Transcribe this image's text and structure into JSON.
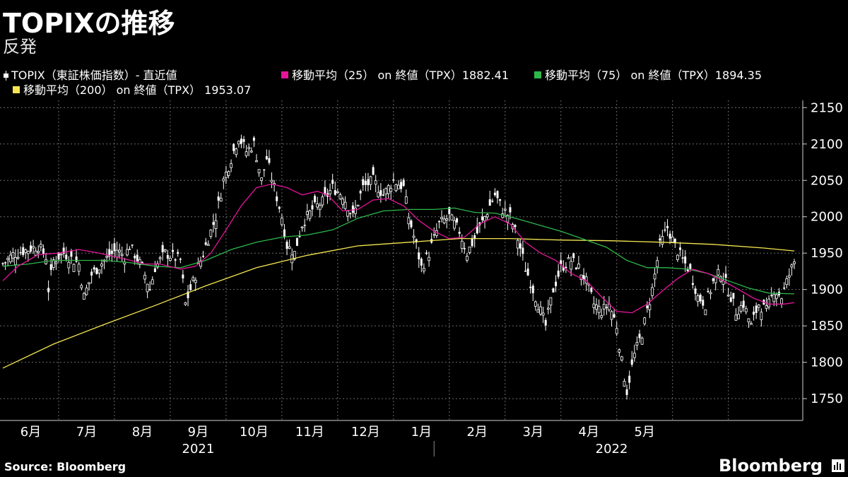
{
  "title": "TOPIXの推移",
  "subtitle": "反発",
  "legend": [
    {
      "label": "TOPIX（東証株価指数）- 直近値",
      "color": "#ffffff",
      "kind": "candle"
    },
    {
      "label": "移動平均（25） on 終値（TPX）1882.41",
      "color": "#e6149b",
      "kind": "line"
    },
    {
      "label": "移動平均（75） on 終値（TPX）1894.35",
      "color": "#2db84a",
      "kind": "line"
    },
    {
      "label": "移動平均（200） on 終値（TPX） 1953.07",
      "color": "#f5e650",
      "kind": "line"
    }
  ],
  "source": "Source:  Bloomberg",
  "brand": "Bloomberg",
  "chart_data": {
    "type": "line",
    "y_ticks": [
      1750,
      1800,
      1850,
      1900,
      1950,
      2000,
      2050,
      2100,
      2150
    ],
    "ylim": [
      1720,
      2160
    ],
    "x_ticks": [
      "6月",
      "7月",
      "8月",
      "9月",
      "10月",
      "11月",
      "12月",
      "1月",
      "2月",
      "3月",
      "4月",
      "5月"
    ],
    "years": [
      "2021",
      "2022"
    ],
    "grid": true,
    "price_close": [
      {
        "x": 0,
        "y": 1935
      },
      {
        "x": 4,
        "y": 1948
      },
      {
        "x": 10,
        "y": 1955
      },
      {
        "x": 14,
        "y": 1960
      },
      {
        "x": 17,
        "y": 1945
      },
      {
        "x": 18,
        "y": 1900
      },
      {
        "x": 20,
        "y": 1940
      },
      {
        "x": 24,
        "y": 1950
      },
      {
        "x": 30,
        "y": 1935
      },
      {
        "x": 32,
        "y": 1890
      },
      {
        "x": 35,
        "y": 1920
      },
      {
        "x": 40,
        "y": 1940
      },
      {
        "x": 45,
        "y": 1955
      },
      {
        "x": 48,
        "y": 1945
      },
      {
        "x": 50,
        "y": 1960
      },
      {
        "x": 55,
        "y": 1930
      },
      {
        "x": 58,
        "y": 1900
      },
      {
        "x": 60,
        "y": 1930
      },
      {
        "x": 64,
        "y": 1950
      },
      {
        "x": 70,
        "y": 1940
      },
      {
        "x": 72,
        "y": 1880
      },
      {
        "x": 76,
        "y": 1920
      },
      {
        "x": 80,
        "y": 1960
      },
      {
        "x": 84,
        "y": 2000
      },
      {
        "x": 87,
        "y": 2050
      },
      {
        "x": 90,
        "y": 2080
      },
      {
        "x": 93,
        "y": 2110
      },
      {
        "x": 96,
        "y": 2090
      },
      {
        "x": 99,
        "y": 2100
      },
      {
        "x": 102,
        "y": 2050
      },
      {
        "x": 104,
        "y": 2080
      },
      {
        "x": 107,
        "y": 2040
      },
      {
        "x": 110,
        "y": 2000
      },
      {
        "x": 112,
        "y": 1960
      },
      {
        "x": 115,
        "y": 1950
      },
      {
        "x": 118,
        "y": 1990
      },
      {
        "x": 122,
        "y": 2010
      },
      {
        "x": 126,
        "y": 2020
      },
      {
        "x": 130,
        "y": 2040
      },
      {
        "x": 134,
        "y": 2030
      },
      {
        "x": 138,
        "y": 2000
      },
      {
        "x": 142,
        "y": 2040
      },
      {
        "x": 146,
        "y": 2050
      },
      {
        "x": 150,
        "y": 2030
      },
      {
        "x": 154,
        "y": 2050
      },
      {
        "x": 158,
        "y": 2040
      },
      {
        "x": 160,
        "y": 2000
      },
      {
        "x": 163,
        "y": 1960
      },
      {
        "x": 165,
        "y": 1930
      },
      {
        "x": 168,
        "y": 1950
      },
      {
        "x": 172,
        "y": 1990
      },
      {
        "x": 176,
        "y": 2000
      },
      {
        "x": 180,
        "y": 1980
      },
      {
        "x": 183,
        "y": 1950
      },
      {
        "x": 186,
        "y": 1970
      },
      {
        "x": 190,
        "y": 2000
      },
      {
        "x": 194,
        "y": 2030
      },
      {
        "x": 197,
        "y": 2010
      },
      {
        "x": 200,
        "y": 2000
      },
      {
        "x": 203,
        "y": 1970
      },
      {
        "x": 206,
        "y": 1930
      },
      {
        "x": 209,
        "y": 1900
      },
      {
        "x": 212,
        "y": 1870
      },
      {
        "x": 214,
        "y": 1850
      },
      {
        "x": 217,
        "y": 1900
      },
      {
        "x": 220,
        "y": 1930
      },
      {
        "x": 224,
        "y": 1940
      },
      {
        "x": 227,
        "y": 1930
      },
      {
        "x": 230,
        "y": 1910
      },
      {
        "x": 233,
        "y": 1880
      },
      {
        "x": 236,
        "y": 1870
      },
      {
        "x": 239,
        "y": 1880
      },
      {
        "x": 242,
        "y": 1850
      },
      {
        "x": 244,
        "y": 1800
      },
      {
        "x": 246,
        "y": 1760
      },
      {
        "x": 249,
        "y": 1810
      },
      {
        "x": 252,
        "y": 1840
      },
      {
        "x": 256,
        "y": 1900
      },
      {
        "x": 259,
        "y": 1960
      },
      {
        "x": 262,
        "y": 1985
      },
      {
        "x": 265,
        "y": 1960
      },
      {
        "x": 268,
        "y": 1940
      },
      {
        "x": 271,
        "y": 1925
      },
      {
        "x": 274,
        "y": 1890
      },
      {
        "x": 277,
        "y": 1880
      },
      {
        "x": 280,
        "y": 1910
      },
      {
        "x": 283,
        "y": 1925
      },
      {
        "x": 286,
        "y": 1900
      },
      {
        "x": 289,
        "y": 1870
      },
      {
        "x": 292,
        "y": 1880
      },
      {
        "x": 295,
        "y": 1850
      },
      {
        "x": 298,
        "y": 1880
      },
      {
        "x": 301,
        "y": 1870
      },
      {
        "x": 304,
        "y": 1900
      },
      {
        "x": 307,
        "y": 1890
      },
      {
        "x": 310,
        "y": 1920
      },
      {
        "x": 312,
        "y": 1938
      }
    ],
    "ma25": [
      {
        "x": 0,
        "y": 1912
      },
      {
        "x": 6,
        "y": 1932
      },
      {
        "x": 14,
        "y": 1948
      },
      {
        "x": 22,
        "y": 1950
      },
      {
        "x": 30,
        "y": 1955
      },
      {
        "x": 38,
        "y": 1950
      },
      {
        "x": 48,
        "y": 1942
      },
      {
        "x": 56,
        "y": 1935
      },
      {
        "x": 62,
        "y": 1935
      },
      {
        "x": 70,
        "y": 1928
      },
      {
        "x": 76,
        "y": 1932
      },
      {
        "x": 82,
        "y": 1950
      },
      {
        "x": 88,
        "y": 1982
      },
      {
        "x": 94,
        "y": 2015
      },
      {
        "x": 100,
        "y": 2040
      },
      {
        "x": 106,
        "y": 2045
      },
      {
        "x": 112,
        "y": 2040
      },
      {
        "x": 118,
        "y": 2030
      },
      {
        "x": 124,
        "y": 2035
      },
      {
        "x": 128,
        "y": 2030
      },
      {
        "x": 134,
        "y": 2008
      },
      {
        "x": 140,
        "y": 2010
      },
      {
        "x": 146,
        "y": 2023
      },
      {
        "x": 152,
        "y": 2025
      },
      {
        "x": 158,
        "y": 2015
      },
      {
        "x": 164,
        "y": 1995
      },
      {
        "x": 170,
        "y": 1980
      },
      {
        "x": 176,
        "y": 1970
      },
      {
        "x": 182,
        "y": 1972
      },
      {
        "x": 188,
        "y": 1990
      },
      {
        "x": 194,
        "y": 2000
      },
      {
        "x": 200,
        "y": 1990
      },
      {
        "x": 206,
        "y": 1965
      },
      {
        "x": 212,
        "y": 1950
      },
      {
        "x": 218,
        "y": 1940
      },
      {
        "x": 224,
        "y": 1922
      },
      {
        "x": 230,
        "y": 1912
      },
      {
        "x": 236,
        "y": 1890
      },
      {
        "x": 242,
        "y": 1870
      },
      {
        "x": 248,
        "y": 1868
      },
      {
        "x": 254,
        "y": 1880
      },
      {
        "x": 260,
        "y": 1898
      },
      {
        "x": 266,
        "y": 1915
      },
      {
        "x": 272,
        "y": 1928
      },
      {
        "x": 278,
        "y": 1922
      },
      {
        "x": 284,
        "y": 1912
      },
      {
        "x": 290,
        "y": 1900
      },
      {
        "x": 296,
        "y": 1888
      },
      {
        "x": 302,
        "y": 1880
      },
      {
        "x": 308,
        "y": 1880
      },
      {
        "x": 312,
        "y": 1882
      }
    ],
    "ma75": [
      {
        "x": 0,
        "y": 1932
      },
      {
        "x": 10,
        "y": 1935
      },
      {
        "x": 20,
        "y": 1940
      },
      {
        "x": 30,
        "y": 1940
      },
      {
        "x": 40,
        "y": 1940
      },
      {
        "x": 50,
        "y": 1937
      },
      {
        "x": 60,
        "y": 1932
      },
      {
        "x": 70,
        "y": 1930
      },
      {
        "x": 80,
        "y": 1940
      },
      {
        "x": 90,
        "y": 1955
      },
      {
        "x": 100,
        "y": 1965
      },
      {
        "x": 110,
        "y": 1972
      },
      {
        "x": 120,
        "y": 1975
      },
      {
        "x": 130,
        "y": 1982
      },
      {
        "x": 140,
        "y": 1998
      },
      {
        "x": 150,
        "y": 2008
      },
      {
        "x": 160,
        "y": 2010
      },
      {
        "x": 170,
        "y": 2010
      },
      {
        "x": 178,
        "y": 2012
      },
      {
        "x": 186,
        "y": 2006
      },
      {
        "x": 194,
        "y": 2005
      },
      {
        "x": 202,
        "y": 1998
      },
      {
        "x": 210,
        "y": 1990
      },
      {
        "x": 220,
        "y": 1980
      },
      {
        "x": 230,
        "y": 1968
      },
      {
        "x": 238,
        "y": 1958
      },
      {
        "x": 246,
        "y": 1940
      },
      {
        "x": 254,
        "y": 1930
      },
      {
        "x": 262,
        "y": 1930
      },
      {
        "x": 270,
        "y": 1928
      },
      {
        "x": 278,
        "y": 1922
      },
      {
        "x": 286,
        "y": 1912
      },
      {
        "x": 294,
        "y": 1902
      },
      {
        "x": 302,
        "y": 1895
      },
      {
        "x": 312,
        "y": 1894
      }
    ],
    "ma200": [
      {
        "x": 0,
        "y": 1792
      },
      {
        "x": 20,
        "y": 1825
      },
      {
        "x": 40,
        "y": 1852
      },
      {
        "x": 60,
        "y": 1878
      },
      {
        "x": 80,
        "y": 1905
      },
      {
        "x": 100,
        "y": 1930
      },
      {
        "x": 120,
        "y": 1947
      },
      {
        "x": 140,
        "y": 1960
      },
      {
        "x": 160,
        "y": 1965
      },
      {
        "x": 180,
        "y": 1970
      },
      {
        "x": 200,
        "y": 1970
      },
      {
        "x": 220,
        "y": 1968
      },
      {
        "x": 240,
        "y": 1967
      },
      {
        "x": 260,
        "y": 1965
      },
      {
        "x": 280,
        "y": 1962
      },
      {
        "x": 300,
        "y": 1957
      },
      {
        "x": 312,
        "y": 1953
      }
    ]
  }
}
